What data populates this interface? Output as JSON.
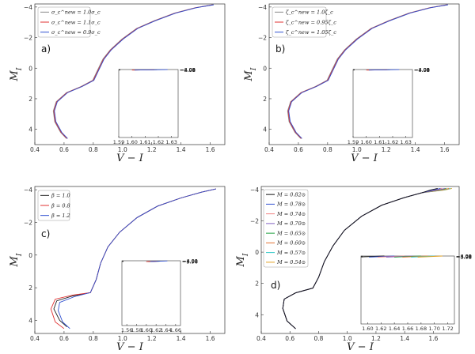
{
  "chart_data": [
    {
      "panel": "a)",
      "type": "line",
      "xlabel": "V − I",
      "ylabel": "M_I",
      "xlim": [
        0.4,
        1.7
      ],
      "ylim": [
        5,
        -4.2
      ],
      "xticks": [
        "0.4",
        "0.6",
        "0.8",
        "1.0",
        "1.2",
        "1.4",
        "1.6"
      ],
      "yticks": [
        "−4",
        "−2",
        "0",
        "2",
        "4"
      ],
      "legend": [
        "σ_c^new = 1.0σ_c",
        "σ_c^new = 1.1σ_c",
        "σ_c^new = 0.9σ_c"
      ],
      "series_colors": [
        "#888888",
        "#e03030",
        "#3050d0"
      ],
      "track": [
        [
          0.62,
          4.6
        ],
        [
          0.58,
          4.2
        ],
        [
          0.54,
          3.5
        ],
        [
          0.53,
          2.8
        ],
        [
          0.55,
          2.2
        ],
        [
          0.62,
          1.6
        ],
        [
          0.72,
          1.2
        ],
        [
          0.8,
          0.8
        ],
        [
          0.83,
          0.2
        ],
        [
          0.87,
          -0.6
        ],
        [
          0.92,
          -1.2
        ],
        [
          1.0,
          -1.9
        ],
        [
          1.1,
          -2.6
        ],
        [
          1.22,
          -3.1
        ],
        [
          1.36,
          -3.6
        ],
        [
          1.5,
          -3.95
        ],
        [
          1.62,
          -4.15
        ]
      ],
      "inset": {
        "xlim": [
          1.59,
          1.635
        ],
        "ylim": [
          3.98,
          -4.05
        ],
        "xticks": [
          "1.59",
          "1.60",
          "1.61",
          "1.62",
          "1.63"
        ],
        "yticks": [
          "−4.05",
          "−4.04",
          "−4.03",
          "−4.02",
          "−4.01",
          "−4.00",
          "−3.99",
          "−3.98"
        ],
        "lines": [
          {
            "color": "#888888",
            "pts": [
              [
                1.601,
                -3.98
              ],
              [
                1.619,
                -4.025
              ]
            ]
          },
          {
            "color": "#e03030",
            "pts": [
              [
                1.6,
                -3.98
              ],
              [
                1.617,
                -4.02
              ]
            ]
          },
          {
            "color": "#3050d0",
            "pts": [
              [
                1.602,
                -3.98
              ],
              [
                1.627,
                -4.045
              ]
            ]
          }
        ]
      }
    },
    {
      "panel": "b)",
      "type": "line",
      "xlabel": "V − I",
      "ylabel": "M_I",
      "xlim": [
        0.4,
        1.7
      ],
      "ylim": [
        5,
        -4.2
      ],
      "xticks": [
        "0.4",
        "0.6",
        "0.8",
        "1.0",
        "1.2",
        "1.4",
        "1.6"
      ],
      "yticks": [
        "−4",
        "−2",
        "0",
        "2",
        "4"
      ],
      "legend": [
        "ζ_c^new = 1.0ζ_c",
        "ζ_c^new = 0.95ζ_c",
        "ζ_c^new = 1.05ζ_c"
      ],
      "series_colors": [
        "#888888",
        "#e03030",
        "#3050d0"
      ],
      "track": [
        [
          0.62,
          4.6
        ],
        [
          0.58,
          4.2
        ],
        [
          0.54,
          3.5
        ],
        [
          0.53,
          2.8
        ],
        [
          0.55,
          2.2
        ],
        [
          0.62,
          1.6
        ],
        [
          0.72,
          1.2
        ],
        [
          0.8,
          0.8
        ],
        [
          0.83,
          0.2
        ],
        [
          0.87,
          -0.6
        ],
        [
          0.92,
          -1.2
        ],
        [
          1.0,
          -1.9
        ],
        [
          1.1,
          -2.6
        ],
        [
          1.22,
          -3.1
        ],
        [
          1.36,
          -3.6
        ],
        [
          1.5,
          -3.95
        ],
        [
          1.62,
          -4.15
        ]
      ],
      "inset": {
        "xlim": [
          1.59,
          1.635
        ],
        "ylim": [
          3.98,
          -4.05
        ],
        "xticks": [
          "1.59",
          "1.60",
          "1.61",
          "1.62",
          "1.63"
        ],
        "yticks": [
          "−4.05",
          "−4.04",
          "−4.03",
          "−4.02",
          "−4.01",
          "−4.00",
          "−3.99",
          "−3.98"
        ],
        "lines": [
          {
            "color": "#888888",
            "pts": [
              [
                1.601,
                -3.98
              ],
              [
                1.618,
                -4.02
              ]
            ]
          },
          {
            "color": "#e03030",
            "pts": [
              [
                1.6,
                -3.98
              ],
              [
                1.616,
                -4.02
              ]
            ]
          },
          {
            "color": "#3050d0",
            "pts": [
              [
                1.602,
                -3.98
              ],
              [
                1.625,
                -4.04
              ]
            ]
          }
        ]
      }
    },
    {
      "panel": "c)",
      "type": "line",
      "xlabel": "V − I",
      "ylabel": "M_I",
      "xlim": [
        0.4,
        1.7
      ],
      "ylim": [
        4.8,
        -4.2
      ],
      "xticks": [
        "0.4",
        "0.6",
        "0.8",
        "1.0",
        "1.2",
        "1.4",
        "1.6"
      ],
      "yticks": [
        "−4",
        "−2",
        "0",
        "2",
        "4"
      ],
      "legend": [
        "β = 1.0",
        "β = 0.8",
        "β = 1.2"
      ],
      "series_colors": [
        "#222222",
        "#e03030",
        "#3050d0"
      ],
      "tracks": [
        [
          [
            0.62,
            4.4
          ],
          [
            0.57,
            4.0
          ],
          [
            0.53,
            3.3
          ],
          [
            0.55,
            2.8
          ],
          [
            0.66,
            2.5
          ],
          [
            0.78,
            2.3
          ],
          [
            0.82,
            1.5
          ],
          [
            0.85,
            0.5
          ],
          [
            0.9,
            -0.5
          ],
          [
            0.98,
            -1.4
          ],
          [
            1.1,
            -2.3
          ],
          [
            1.24,
            -3.0
          ],
          [
            1.4,
            -3.5
          ],
          [
            1.54,
            -3.85
          ],
          [
            1.64,
            -4.05
          ]
        ],
        [
          [
            0.6,
            4.5
          ],
          [
            0.54,
            4.1
          ],
          [
            0.51,
            3.3
          ],
          [
            0.54,
            2.7
          ],
          [
            0.66,
            2.45
          ],
          [
            0.78,
            2.3
          ],
          [
            0.82,
            1.5
          ],
          [
            0.85,
            0.5
          ],
          [
            0.9,
            -0.5
          ],
          [
            0.98,
            -1.4
          ],
          [
            1.1,
            -2.3
          ],
          [
            1.24,
            -3.0
          ],
          [
            1.4,
            -3.5
          ],
          [
            1.54,
            -3.85
          ],
          [
            1.64,
            -4.05
          ]
        ],
        [
          [
            0.64,
            4.5
          ],
          [
            0.59,
            4.1
          ],
          [
            0.56,
            3.4
          ],
          [
            0.57,
            2.9
          ],
          [
            0.67,
            2.55
          ],
          [
            0.78,
            2.3
          ],
          [
            0.82,
            1.5
          ],
          [
            0.85,
            0.5
          ],
          [
            0.9,
            -0.5
          ],
          [
            0.98,
            -1.4
          ],
          [
            1.1,
            -2.3
          ],
          [
            1.24,
            -3.0
          ],
          [
            1.4,
            -3.5
          ],
          [
            1.54,
            -3.85
          ],
          [
            1.64,
            -4.05
          ]
        ]
      ],
      "inset": {
        "xlim": [
          1.55,
          1.67
        ],
        "ylim": [
          3.95,
          -4.06
        ],
        "xticks": [
          "1.56",
          "1.58",
          "1.60",
          "1.62",
          "1.64",
          "1.66"
        ],
        "yticks": [
          "−4.04",
          "−4.02",
          "−4.00",
          "−3.98",
          "−3.96"
        ],
        "lines": [
          {
            "color": "#222222",
            "pts": [
              [
                1.604,
                -3.95
              ],
              [
                1.628,
                -4.01
              ]
            ]
          },
          {
            "color": "#e03030",
            "pts": [
              [
                1.6,
                -3.95
              ],
              [
                1.622,
                -4.005
              ]
            ]
          },
          {
            "color": "#3050d0",
            "pts": [
              [
                1.608,
                -3.95
              ],
              [
                1.643,
                -4.04
              ]
            ]
          }
        ]
      }
    },
    {
      "panel": "d)",
      "type": "line",
      "xlabel": "V − I",
      "ylabel": "M_I",
      "xlim": [
        0.4,
        1.78
      ],
      "ylim": [
        5.2,
        -4.2
      ],
      "xticks": [
        "0.4",
        "0.6",
        "0.8",
        "1.0",
        "1.2",
        "1.4",
        "1.6"
      ],
      "yticks": [
        "−4",
        "−2",
        "0",
        "2",
        "4"
      ],
      "legend": [
        "M = 0.82⊙",
        "M = 0.78⊙",
        "M = 0.74⊙",
        "M = 0.70⊙",
        "M = 0.65⊙",
        "M = 0.60⊙",
        "M = 0.57⊙",
        "M = 0.54⊙"
      ],
      "series_colors": [
        "#111111",
        "#3050d0",
        "#f08080",
        "#8060c0",
        "#20a040",
        "#e07030",
        "#30c8c8",
        "#e0a020"
      ],
      "track_end_x": [
        1.63,
        1.65,
        1.66,
        1.68,
        1.69,
        1.71,
        1.72,
        1.73
      ],
      "base_track": [
        [
          0.64,
          4.9
        ],
        [
          0.58,
          4.4
        ],
        [
          0.55,
          3.6
        ],
        [
          0.56,
          3.0
        ],
        [
          0.64,
          2.6
        ],
        [
          0.76,
          2.3
        ],
        [
          0.8,
          1.6
        ],
        [
          0.84,
          0.6
        ],
        [
          0.9,
          -0.4
        ],
        [
          0.98,
          -1.4
        ],
        [
          1.1,
          -2.3
        ],
        [
          1.24,
          -3.0
        ],
        [
          1.4,
          -3.5
        ],
        [
          1.52,
          -3.8
        ]
      ],
      "inset": {
        "xlim": [
          1.59,
          1.73
        ],
        "ylim": [
          3.9,
          -4.03
        ],
        "xticks": [
          "1.60",
          "1.62",
          "1.64",
          "1.66",
          "1.68",
          "1.70",
          "1.72"
        ],
        "yticks": [
          "−4.02",
          "−4.00",
          "−3.98",
          "−3.96",
          "−3.94",
          "−3.92",
          "−3.90"
        ],
        "lines": [
          {
            "color": "#111111",
            "pts": [
              [
                1.592,
                -3.93
              ],
              [
                1.625,
                -4.03
              ]
            ]
          },
          {
            "color": "#3050d0",
            "pts": [
              [
                1.602,
                -3.9
              ],
              [
                1.64,
                -4.03
              ]
            ]
          },
          {
            "color": "#f08080",
            "pts": [
              [
                1.615,
                -3.9
              ],
              [
                1.655,
                -4.03
              ]
            ]
          },
          {
            "color": "#8060c0",
            "pts": [
              [
                1.628,
                -3.9
              ],
              [
                1.668,
                -4.03
              ]
            ]
          },
          {
            "color": "#20a040",
            "pts": [
              [
                1.64,
                -3.9
              ],
              [
                1.68,
                -4.03
              ]
            ]
          },
          {
            "color": "#e07030",
            "pts": [
              [
                1.652,
                -3.9
              ],
              [
                1.69,
                -4.03
              ]
            ]
          },
          {
            "color": "#30c8c8",
            "pts": [
              [
                1.665,
                -3.9
              ],
              [
                1.7,
                -4.03
              ]
            ]
          },
          {
            "color": "#e0a020",
            "pts": [
              [
                1.675,
                -3.9
              ],
              [
                1.712,
                -4.03
              ]
            ]
          }
        ]
      }
    }
  ]
}
